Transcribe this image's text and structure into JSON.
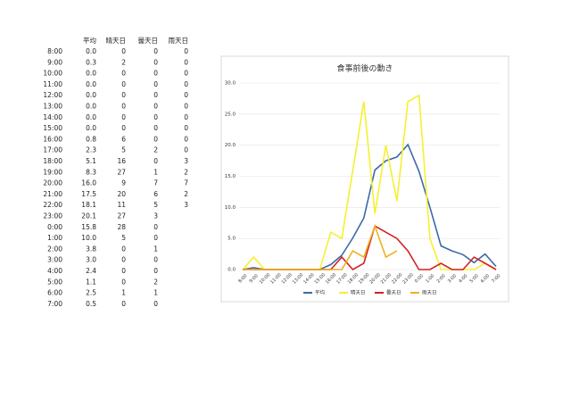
{
  "table": {
    "headers": [
      "平均",
      "晴天日",
      "曇天日",
      "雨天日"
    ],
    "rows": [
      [
        "8:00",
        "0.0",
        "0",
        "0",
        "0"
      ],
      [
        "9:00",
        "0.3",
        "2",
        "0",
        "0"
      ],
      [
        "10:00",
        "0.0",
        "0",
        "0",
        "0"
      ],
      [
        "11:00",
        "0.0",
        "0",
        "0",
        "0"
      ],
      [
        "12:00",
        "0.0",
        "0",
        "0",
        "0"
      ],
      [
        "13:00",
        "0.0",
        "0",
        "0",
        "0"
      ],
      [
        "14:00",
        "0.0",
        "0",
        "0",
        "0"
      ],
      [
        "15:00",
        "0.0",
        "0",
        "0",
        "0"
      ],
      [
        "16:00",
        "0.8",
        "6",
        "0",
        "0"
      ],
      [
        "17:00",
        "2.3",
        "5",
        "2",
        "0"
      ],
      [
        "18:00",
        "5.1",
        "16",
        "0",
        "3"
      ],
      [
        "19:00",
        "8.3",
        "27",
        "1",
        "2"
      ],
      [
        "20:00",
        "16.0",
        "9",
        "7",
        "7"
      ],
      [
        "21:00",
        "17.5",
        "20",
        "6",
        "2"
      ],
      [
        "22:00",
        "18.1",
        "11",
        "5",
        "3"
      ],
      [
        "23:00",
        "20.1",
        "27",
        "3"
      ],
      [
        "0:00",
        "15.8",
        "28",
        "0"
      ],
      [
        "1:00",
        "10.0",
        "5",
        "0"
      ],
      [
        "2:00",
        "3.8",
        "0",
        "1"
      ],
      [
        "3:00",
        "3.0",
        "0",
        "0"
      ],
      [
        "4:00",
        "2.4",
        "0",
        "0"
      ],
      [
        "5:00",
        "1.1",
        "0",
        "2"
      ],
      [
        "6:00",
        "2.5",
        "1",
        "1"
      ],
      [
        "7:00",
        "0.5",
        "0",
        "0"
      ]
    ]
  },
  "chart_data": {
    "type": "line",
    "title": "食事前後の動き",
    "categories": [
      "8:00",
      "9:00",
      "10:00",
      "11:00",
      "12:00",
      "13:00",
      "14:00",
      "15:00",
      "16:00",
      "17:00",
      "18:00",
      "19:00",
      "20:00",
      "21:00",
      "22:00",
      "23:00",
      "0:00",
      "1:00",
      "2:00",
      "3:00",
      "4:00",
      "5:00",
      "6:00",
      "7:00"
    ],
    "series": [
      {
        "name": "平均",
        "color": "#3b6aa8",
        "values": [
          0,
          0.3,
          0,
          0,
          0,
          0,
          0,
          0,
          0.8,
          2.3,
          5.1,
          8.3,
          16,
          17.5,
          18.1,
          20.1,
          15.8,
          10,
          3.8,
          3,
          2.4,
          1.1,
          2.5,
          0.5
        ]
      },
      {
        "name": "晴天日",
        "color": "#f5f032",
        "values": [
          0,
          2,
          0,
          0,
          0,
          0,
          0,
          0,
          6,
          5,
          16,
          27,
          9,
          20,
          11,
          27,
          28,
          5,
          0,
          0,
          0,
          0,
          1,
          0
        ]
      },
      {
        "name": "曇天日",
        "color": "#d42020",
        "values": [
          0,
          0,
          0,
          0,
          0,
          0,
          0,
          0,
          0,
          2,
          0,
          1,
          7,
          6,
          5,
          3,
          0,
          0,
          1,
          0,
          0,
          2,
          1,
          0
        ]
      },
      {
        "name": "雨天日",
        "color": "#f0b020",
        "values": [
          0,
          0,
          0,
          0,
          0,
          0,
          0,
          0,
          0,
          0,
          3,
          2,
          7,
          2,
          3,
          null,
          null,
          null,
          null,
          null,
          null,
          null,
          null,
          null
        ]
      }
    ],
    "ylim": [
      0,
      30
    ],
    "yticks": [
      {
        "value": 0,
        "label": "0.0"
      },
      {
        "value": 5,
        "label": "5.0"
      },
      {
        "value": 10,
        "label": "10.0"
      },
      {
        "value": 15,
        "label": "15.0"
      },
      {
        "value": 20,
        "label": "20.0"
      },
      {
        "value": 25,
        "label": "25.0"
      },
      {
        "value": 30,
        "label": "30.0"
      }
    ],
    "grid": true,
    "legend": "bottom"
  }
}
